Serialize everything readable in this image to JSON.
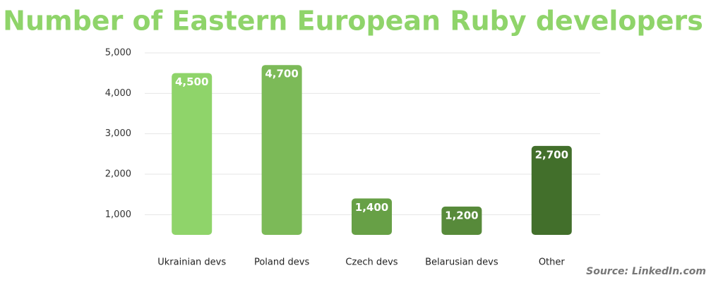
{
  "chart_data": {
    "type": "bar",
    "title": "Number of Eastern European Ruby developers",
    "source": "Source: LinkedIn.com",
    "categories": [
      "Ukrainian devs",
      "Poland devs",
      "Czech devs",
      "Belarusian devs",
      "Other"
    ],
    "values": [
      4500,
      4700,
      1400,
      1200,
      2700
    ],
    "value_labels": [
      "4,500",
      "4,700",
      "1,400",
      "1,200",
      "2,700"
    ],
    "colors": [
      "#8fd46a",
      "#7cba58",
      "#67a046",
      "#578a3a",
      "#426f2b"
    ],
    "ylim": [
      500,
      5000
    ],
    "yticks": [
      {
        "value": 1000,
        "label": "1,000"
      },
      {
        "value": 2000,
        "label": "2,000"
      },
      {
        "value": 3000,
        "label": "3,000"
      },
      {
        "value": 4000,
        "label": "4,000"
      },
      {
        "value": 5000,
        "label": "5,000"
      }
    ],
    "grid": true
  }
}
